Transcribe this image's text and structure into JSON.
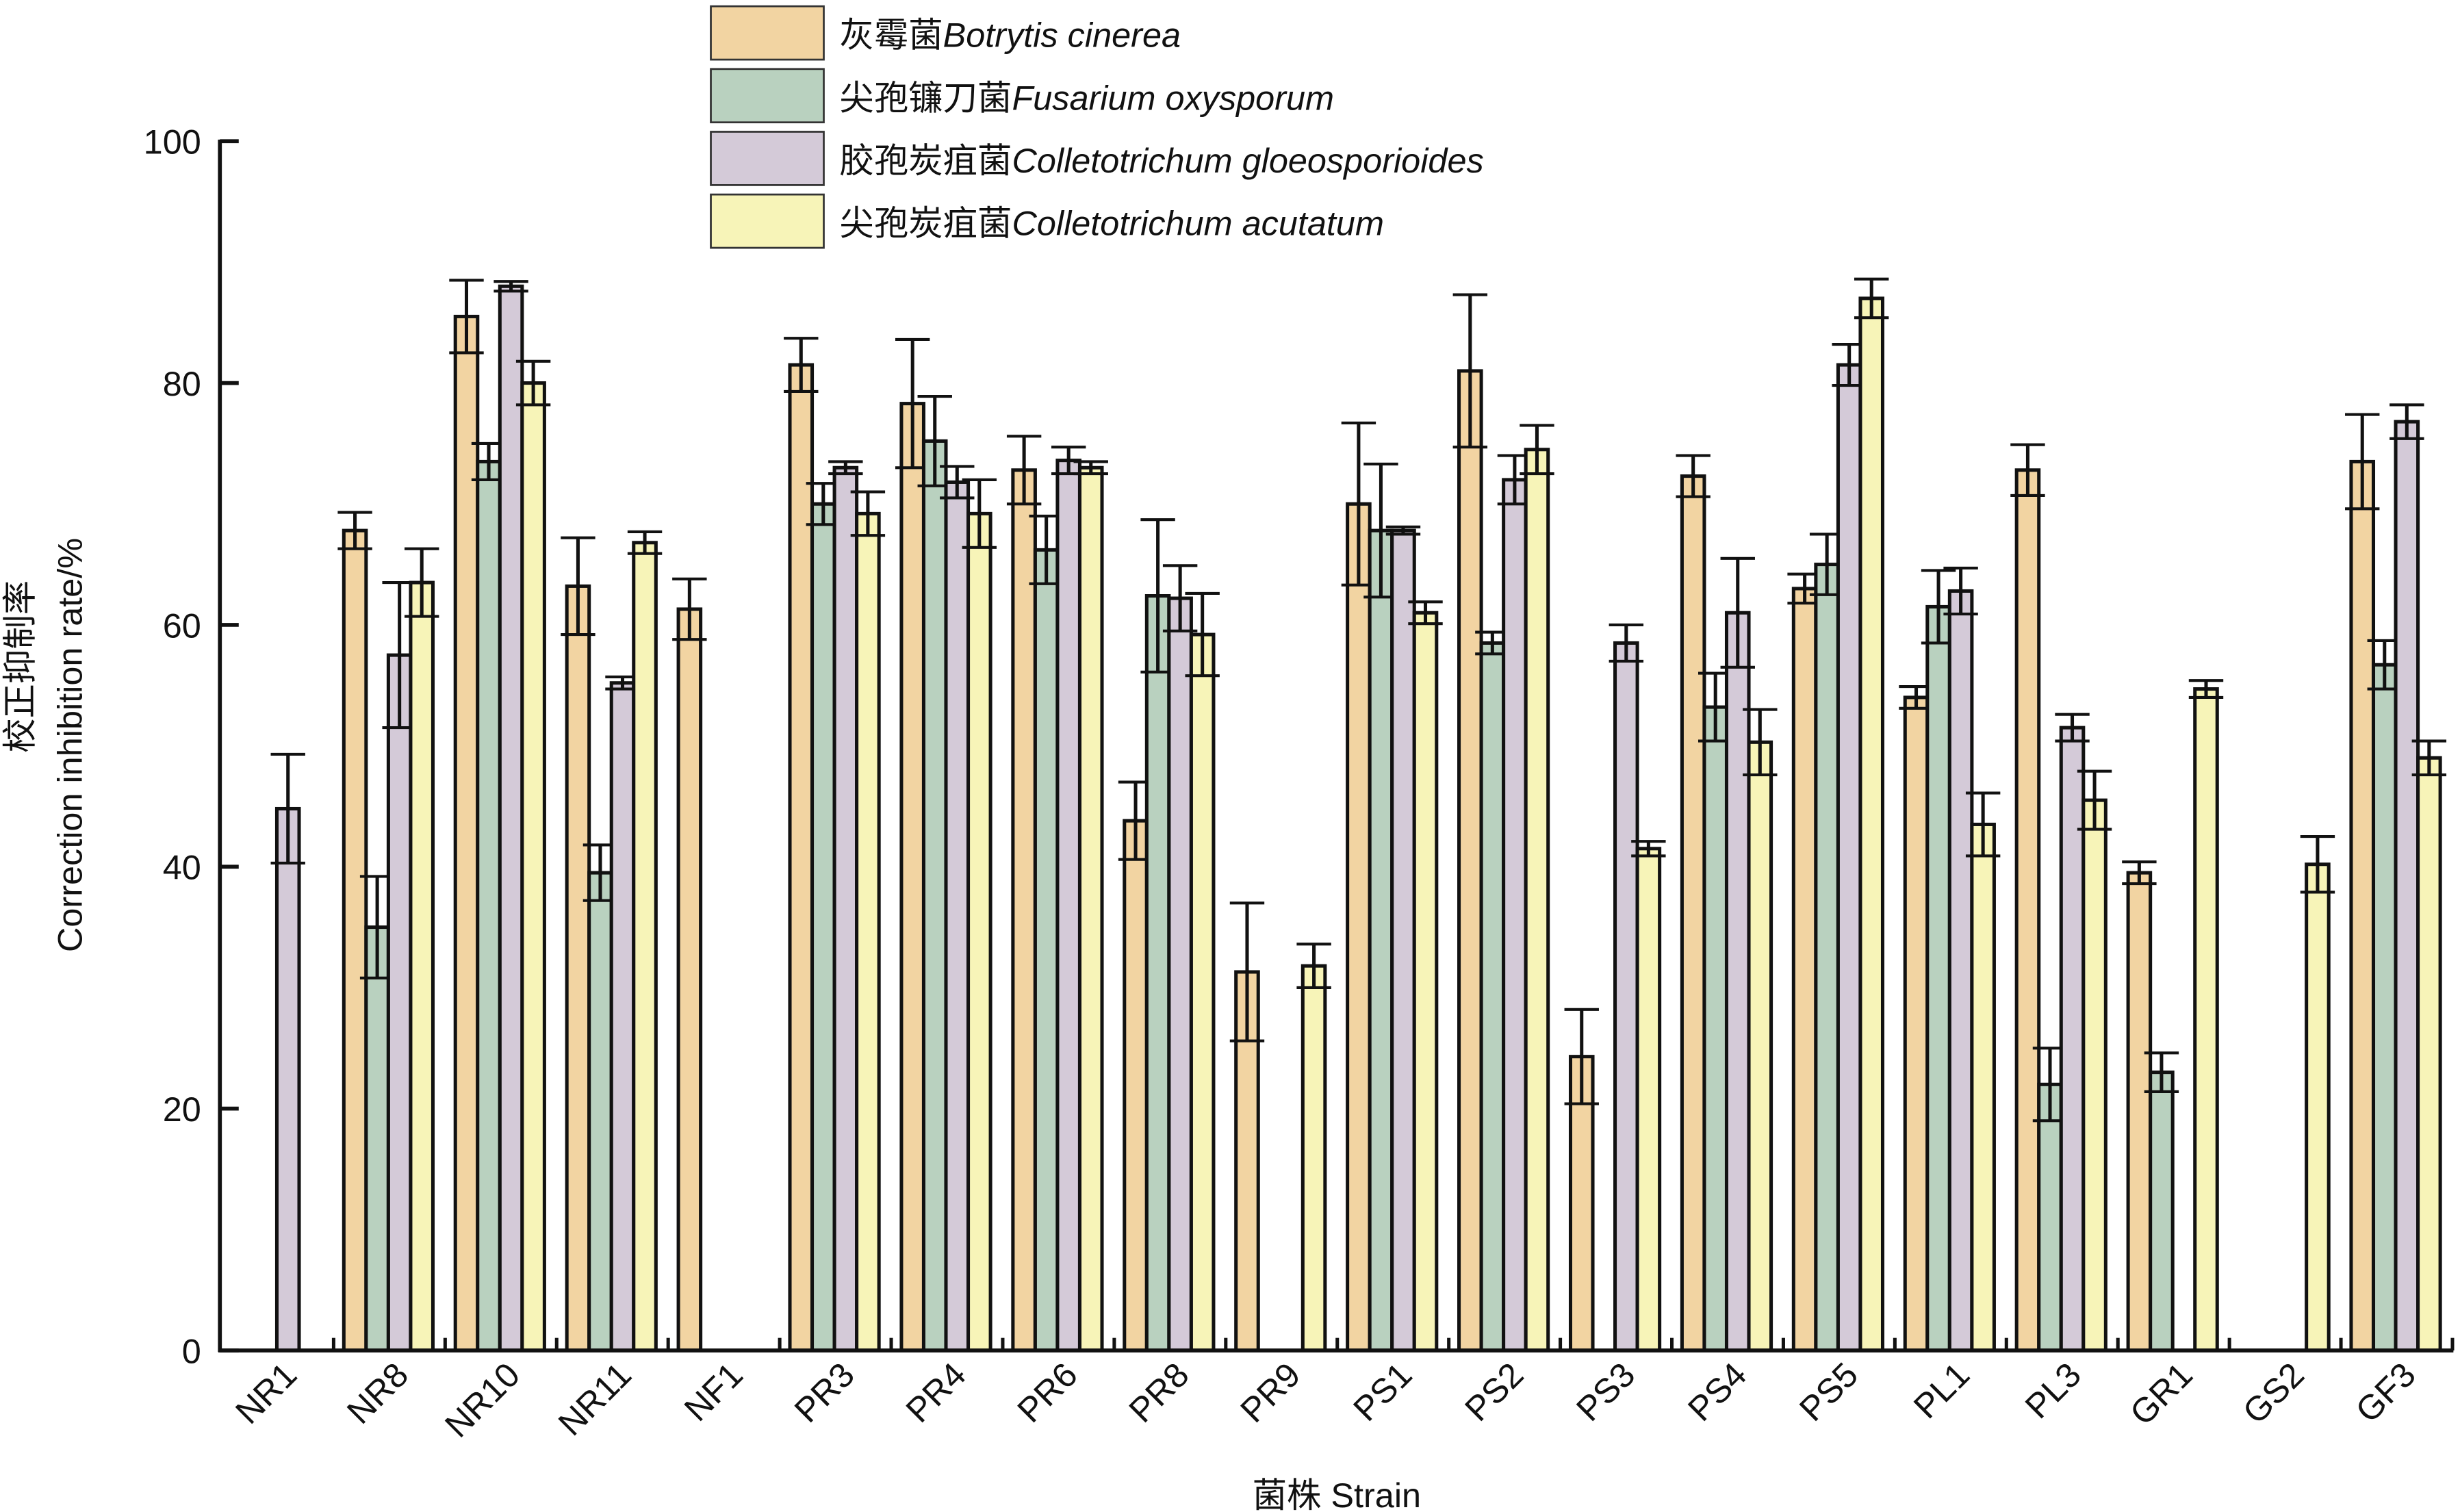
{
  "chart_data": {
    "type": "bar",
    "title": "",
    "xlabel": "菌株 Strain",
    "ylabel": [
      "校正抑制率",
      "Correction inhibition rate/%"
    ],
    "ylim": [
      0,
      100
    ],
    "yticks": [
      0,
      20,
      40,
      60,
      80,
      100
    ],
    "grid": false,
    "legend_placement": "top-center",
    "categories": [
      "NR1",
      "NR8",
      "NR10",
      "NR11",
      "NF1",
      "PR3",
      "PR4",
      "PR6",
      "PR8",
      "PR9",
      "PS1",
      "PS2",
      "PS3",
      "PS4",
      "PS5",
      "PL1",
      "PL3",
      "GR1",
      "GS2",
      "GF3"
    ],
    "series": [
      {
        "name_cn": "灰霉菌",
        "name_latin": "Botrytis cinerea",
        "color": "#F2D4A2",
        "values": [
          null,
          67.8,
          85.5,
          63.2,
          61.3,
          81.5,
          78.3,
          72.8,
          43.8,
          31.3,
          70.0,
          81.0,
          24.3,
          72.3,
          63.0,
          54.0,
          72.8,
          39.5,
          null,
          73.5
        ],
        "errors": [
          null,
          1.5,
          3.0,
          4.0,
          2.5,
          2.2,
          5.3,
          2.8,
          3.2,
          5.7,
          6.7,
          6.3,
          3.9,
          1.7,
          1.2,
          0.9,
          2.1,
          0.9,
          null,
          3.9
        ]
      },
      {
        "name_cn": "尖孢镰刀菌",
        "name_latin": "Fusarium oxysporum",
        "color": "#B9D1BF",
        "values": [
          null,
          35.0,
          73.5,
          39.5,
          null,
          70.0,
          75.2,
          66.2,
          62.4,
          null,
          67.8,
          58.5,
          null,
          53.2,
          65.0,
          61.5,
          22.0,
          23.0,
          null,
          56.7
        ],
        "errors": [
          null,
          4.2,
          1.5,
          2.3,
          null,
          1.7,
          3.7,
          2.8,
          6.3,
          null,
          5.5,
          0.9,
          null,
          2.8,
          2.5,
          3.0,
          3.0,
          1.6,
          null,
          2.0
        ]
      },
      {
        "name_cn": "胶孢炭疽菌",
        "name_latin": "Colletotrichum gloeosporioides",
        "color": "#D4CAD8",
        "values": [
          44.8,
          57.5,
          88.0,
          55.2,
          null,
          73.0,
          71.8,
          73.6,
          62.2,
          null,
          67.8,
          72.0,
          58.5,
          61.0,
          81.5,
          62.8,
          51.5,
          null,
          null,
          76.8
        ],
        "errors": [
          4.5,
          6.0,
          0.4,
          0.5,
          null,
          0.5,
          1.3,
          1.1,
          2.7,
          null,
          0.3,
          2.0,
          1.5,
          4.5,
          1.7,
          1.9,
          1.1,
          null,
          null,
          1.4
        ]
      },
      {
        "name_cn": "尖孢炭疽菌",
        "name_latin": "Colletotrichum acutatum",
        "color": "#F7F4B8",
        "values": [
          null,
          63.5,
          80.0,
          66.8,
          null,
          69.2,
          69.2,
          73.0,
          59.2,
          31.8,
          61.0,
          74.5,
          41.5,
          50.3,
          87.0,
          43.5,
          45.5,
          54.7,
          40.2,
          49.0
        ],
        "errors": [
          null,
          2.8,
          1.8,
          0.9,
          null,
          1.8,
          2.8,
          0.5,
          3.4,
          1.8,
          0.9,
          2.0,
          0.6,
          2.7,
          1.6,
          2.6,
          2.4,
          0.7,
          2.3,
          1.4
        ]
      }
    ]
  }
}
